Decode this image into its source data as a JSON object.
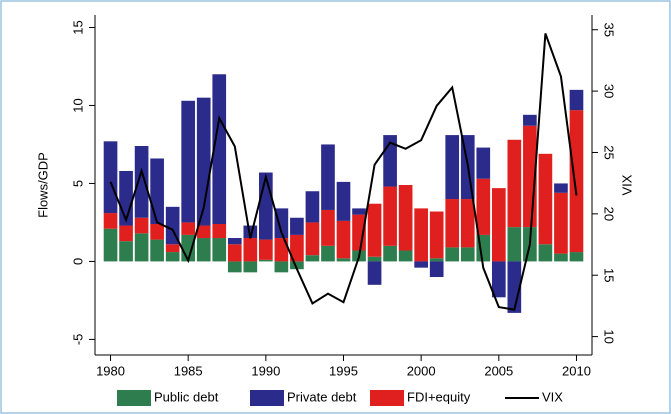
{
  "chart_data": {
    "type": "bar",
    "ylabel": "Flows/GDP",
    "y2label": "VIX",
    "x": [
      1980,
      1981,
      1982,
      1983,
      1984,
      1985,
      1986,
      1987,
      1988,
      1989,
      1990,
      1991,
      1992,
      1993,
      1994,
      1995,
      1996,
      1997,
      1998,
      1999,
      2000,
      2001,
      2002,
      2003,
      2004,
      2005,
      2006,
      2007,
      2008,
      2009,
      2010
    ],
    "series": [
      {
        "name": "Public debt",
        "color": "#2e7d4f",
        "values": [
          2.1,
          1.3,
          1.8,
          1.4,
          0.6,
          1.7,
          1.5,
          1.5,
          -0.7,
          -0.7,
          0.1,
          -0.7,
          -0.5,
          0.4,
          1.0,
          0.2,
          0.7,
          0.3,
          1.0,
          0.7,
          0.0,
          0.2,
          0.9,
          0.9,
          1.7,
          0.0,
          2.2,
          2.2,
          1.1,
          0.5,
          0.6
        ]
      },
      {
        "name": "Private debt",
        "color": "#2b2b8c",
        "values": [
          4.6,
          3.5,
          4.6,
          4.2,
          2.4,
          7.8,
          8.2,
          9.6,
          0.4,
          0.8,
          4.3,
          1.9,
          1.1,
          2.0,
          4.2,
          2.5,
          0.4,
          -1.5,
          3.3,
          0.0,
          -0.4,
          -1.0,
          4.1,
          4.1,
          2.0,
          -2.3,
          -3.3,
          0.7,
          0.0,
          0.6,
          1.3
        ]
      },
      {
        "name": "FDI+equity",
        "color": "#e0201e",
        "values": [
          1.0,
          1.0,
          1.0,
          1.0,
          0.5,
          0.8,
          0.8,
          0.9,
          1.1,
          1.5,
          1.3,
          1.5,
          1.7,
          2.1,
          2.3,
          2.4,
          2.3,
          3.4,
          3.8,
          4.2,
          3.4,
          3.0,
          3.1,
          3.1,
          3.6,
          4.7,
          5.6,
          6.5,
          5.8,
          3.9,
          9.1
        ]
      },
      {
        "name": "VIX",
        "type": "line",
        "axis": "y2",
        "color": "#000000",
        "values": [
          22.6,
          19.5,
          23.5,
          19.3,
          18.7,
          16.2,
          20.5,
          27.8,
          25.5,
          18.0,
          23.0,
          18.5,
          15.5,
          12.7,
          13.5,
          12.8,
          16.5,
          24.0,
          25.8,
          25.3,
          26.0,
          28.8,
          30.3,
          24.0,
          15.6,
          12.4,
          12.2,
          17.5,
          34.7,
          31.2,
          21.5
        ]
      }
    ],
    "xlim": [
      1979,
      2011
    ],
    "xticks": [
      1980,
      1985,
      1990,
      1995,
      2000,
      2005,
      2010
    ],
    "ylim": [
      -6,
      15.8
    ],
    "yticks": [
      -5,
      0,
      5,
      10,
      15
    ],
    "y2lim": [
      8.5,
      36.2
    ],
    "y2ticks": [
      10,
      15,
      20,
      25,
      30,
      35
    ]
  }
}
